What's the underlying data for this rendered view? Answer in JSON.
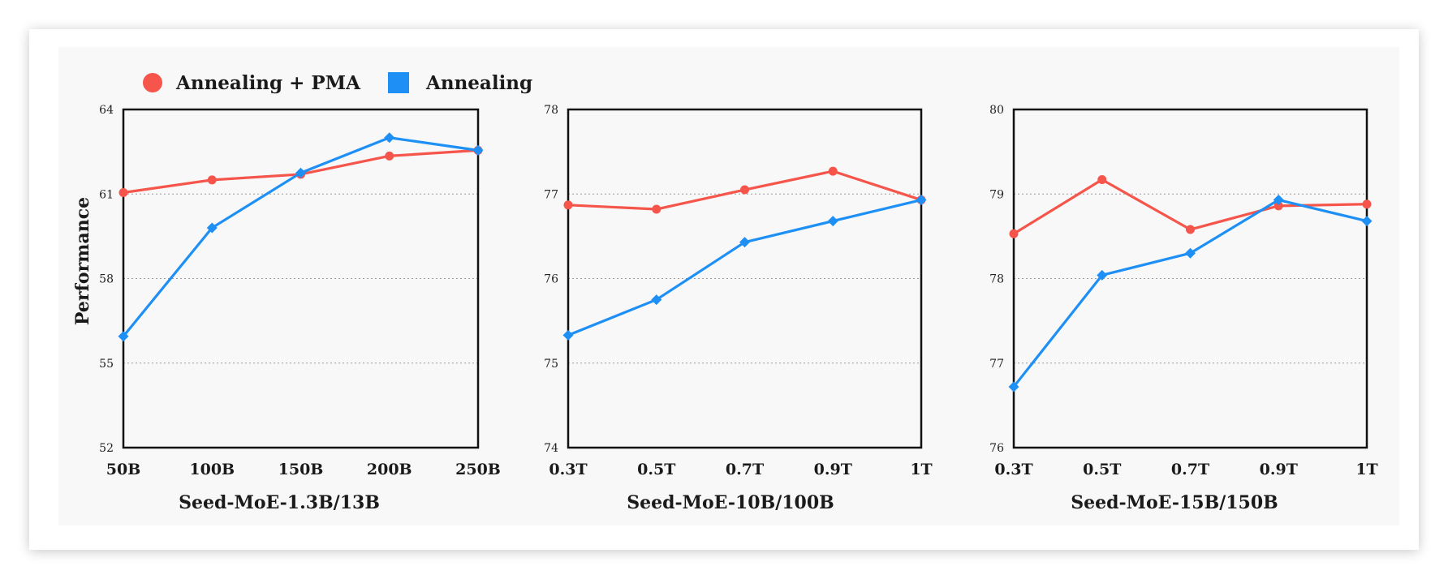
{
  "legend": {
    "items": [
      {
        "label": "Annealing + PMA",
        "color": "#f5554a",
        "marker": "circle"
      },
      {
        "label": "Annealing",
        "color": "#1e90f5",
        "marker": "square"
      }
    ]
  },
  "colors": {
    "pma": "#f5554a",
    "annealing": "#1e90f5",
    "grid": "#9a9a9a"
  },
  "chart_data": [
    {
      "type": "line",
      "xlabel": "Seed-MoE-1.3B/13B",
      "ylabel": "Performance",
      "categories": [
        "50B",
        "100B",
        "150B",
        "200B",
        "250B"
      ],
      "yticks": [
        "52",
        "55",
        "58",
        "61",
        "64"
      ],
      "ylim": [
        52,
        64
      ],
      "grid": "horizontal-dotted",
      "legend": "top-left",
      "series": [
        {
          "name": "Annealing + PMA",
          "values": [
            61.05,
            61.5,
            61.7,
            62.35,
            62.55
          ]
        },
        {
          "name": "Annealing",
          "values": [
            55.95,
            59.8,
            61.75,
            63.0,
            62.55
          ]
        }
      ]
    },
    {
      "type": "line",
      "xlabel": "Seed-MoE-10B/100B",
      "categories": [
        "0.3T",
        "0.5T",
        "0.7T",
        "0.9T",
        "1T"
      ],
      "yticks": [
        "74",
        "75",
        "76",
        "77",
        "78"
      ],
      "ylim": [
        74,
        78
      ],
      "grid": "horizontal-dotted",
      "series": [
        {
          "name": "Annealing + PMA",
          "values": [
            76.87,
            76.82,
            77.05,
            77.27,
            76.93
          ]
        },
        {
          "name": "Annealing",
          "values": [
            75.33,
            75.75,
            76.43,
            76.68,
            76.93
          ]
        }
      ]
    },
    {
      "type": "line",
      "xlabel": "Seed-MoE-15B/150B",
      "categories": [
        "0.3T",
        "0.5T",
        "0.7T",
        "0.9T",
        "1T"
      ],
      "yticks": [
        "76",
        "77",
        "78",
        "79",
        "80"
      ],
      "ylim": [
        76,
        80
      ],
      "grid": "horizontal-dotted",
      "series": [
        {
          "name": "Annealing + PMA",
          "values": [
            78.53,
            79.17,
            78.58,
            78.86,
            78.88
          ]
        },
        {
          "name": "Annealing",
          "values": [
            76.72,
            78.04,
            78.3,
            78.93,
            78.68
          ]
        }
      ]
    }
  ]
}
